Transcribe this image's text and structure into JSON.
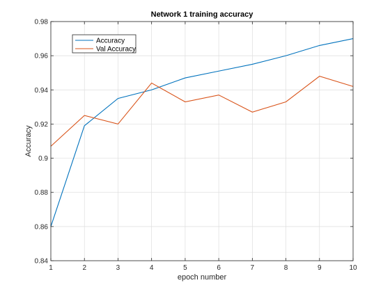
{
  "chart_data": {
    "type": "line",
    "title": "Network 1 training accuracy",
    "xlabel": "epoch number",
    "ylabel": "Accuracy",
    "xlim": [
      1,
      10
    ],
    "ylim": [
      0.84,
      0.98
    ],
    "x_ticks": [
      1,
      2,
      3,
      4,
      5,
      6,
      7,
      8,
      9,
      10
    ],
    "y_ticks": [
      0.84,
      0.86,
      0.88,
      0.9,
      0.92,
      0.94,
      0.96,
      0.98
    ],
    "y_tick_labels": [
      "0.84",
      "0.86",
      "0.88",
      "0.9",
      "0.92",
      "0.94",
      "0.96",
      "0.98"
    ],
    "grid": true,
    "legend_position": "top-left",
    "x": [
      1,
      2,
      3,
      4,
      5,
      6,
      7,
      8,
      9,
      10
    ],
    "series": [
      {
        "name": "Accuracy",
        "color": "#0072BD",
        "values": [
          0.86,
          0.919,
          0.935,
          0.94,
          0.947,
          0.951,
          0.955,
          0.96,
          0.966,
          0.97
        ]
      },
      {
        "name": "Val Accuracy",
        "color": "#D95319",
        "values": [
          0.907,
          0.925,
          0.92,
          0.944,
          0.933,
          0.937,
          0.927,
          0.933,
          0.948,
          0.942
        ]
      }
    ]
  }
}
